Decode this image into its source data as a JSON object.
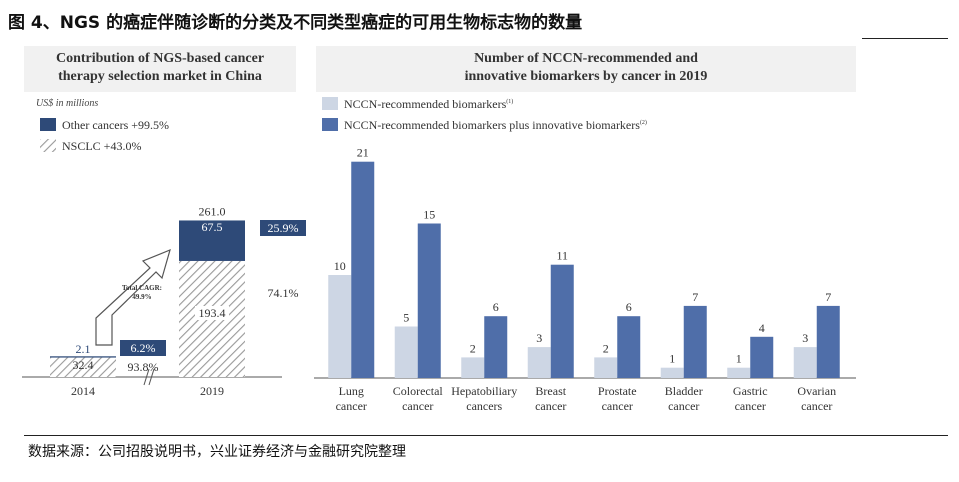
{
  "figure_title": "图 4、NGS 的癌症伴随诊断的分类及不同类型癌症的可用生物标志物的数量",
  "source_note": "数据来源：公司招股说明书，兴业证券经济与金融研究院整理",
  "colors": {
    "dark": "#2e4a78",
    "light": "#cdd6e4",
    "panel_header_bg": "#f1f1f1",
    "hatch": "#9a9a9a"
  },
  "chart_data": [
    {
      "type": "bar",
      "title": "Contribution of NGS-based cancer therapy selection market in China",
      "title_lines": [
        "Contribution of NGS-based cancer",
        "therapy selection market in China"
      ],
      "unit_note": "US$ in millions",
      "categories": [
        "2014",
        "2019"
      ],
      "stacked": true,
      "series": [
        {
          "name": "Other cancers +99.5%",
          "values": [
            2.1,
            67.5
          ]
        },
        {
          "name": "NSCLC +43.0%",
          "values": [
            32.4,
            193.4
          ]
        }
      ],
      "totals": [
        "34.5",
        "261.0"
      ],
      "segment_labels": {
        "other": [
          "2.1",
          "67.5"
        ],
        "nsclc": [
          "32.4",
          "193.4"
        ]
      },
      "share_labels": {
        "other": [
          "6.2%",
          "25.9%"
        ],
        "nsclc": [
          "93.8%",
          "74.1%"
        ]
      },
      "cagr_label": [
        "Total CAGR:",
        "49.9%"
      ],
      "legend_position": "top-left"
    },
    {
      "type": "bar",
      "title": "Number of NCCN-recommended and innovative biomarkers by cancer in 2019",
      "title_lines": [
        "Number of NCCN-recommended and",
        "innovative biomarkers by cancer in 2019"
      ],
      "categories": [
        [
          "Lung",
          "cancer"
        ],
        [
          "Colorectal",
          "cancer"
        ],
        [
          "Hepatobiliary",
          "cancers"
        ],
        [
          "Breast",
          "cancer"
        ],
        [
          "Prostate",
          "cancer"
        ],
        [
          "Bladder",
          "cancer"
        ],
        [
          "Gastric",
          "cancer"
        ],
        [
          "Ovarian",
          "cancer"
        ]
      ],
      "series": [
        {
          "name": "NCCN-recommended biomarkers",
          "sup": "(1)",
          "values": [
            10,
            5,
            2,
            3,
            2,
            1,
            1,
            3
          ]
        },
        {
          "name": "NCCN-recommended biomarkers plus innovative biomarkers",
          "sup": "(2)",
          "values": [
            21,
            15,
            6,
            11,
            6,
            7,
            4,
            7
          ]
        }
      ],
      "ylim": [
        0,
        21
      ],
      "legend_position": "top-left"
    }
  ]
}
